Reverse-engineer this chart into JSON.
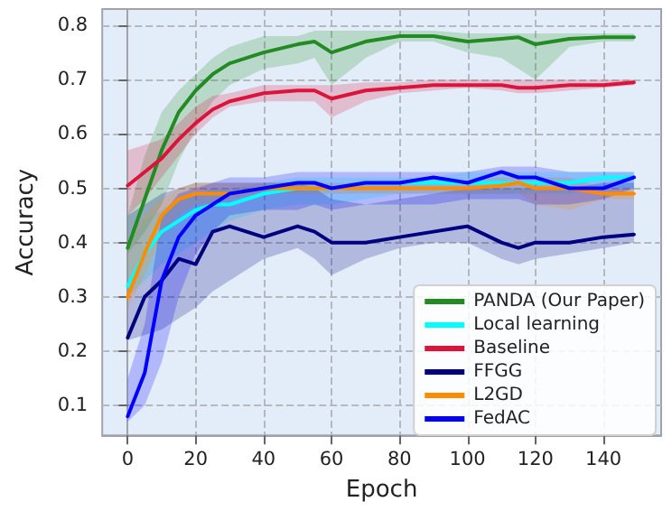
{
  "chart_data": {
    "type": "line",
    "xlabel": "Epoch",
    "ylabel": "Accuracy",
    "x": [
      0,
      5,
      10,
      15,
      20,
      25,
      30,
      40,
      50,
      55,
      60,
      70,
      80,
      90,
      100,
      110,
      115,
      120,
      130,
      140,
      149
    ],
    "xlim": [
      -7.5,
      157
    ],
    "xticks": [
      0,
      20,
      40,
      60,
      80,
      100,
      120,
      140
    ],
    "ylim": [
      0.045,
      0.83
    ],
    "yticks": [
      0.1,
      0.2,
      0.3,
      0.4,
      0.5,
      0.6,
      0.7,
      0.8
    ],
    "grid": true,
    "legend": "bottom right",
    "marker": "none",
    "line_style": "solid",
    "series": [
      {
        "name": "PANDA (Our Paper)",
        "color": "#228b22",
        "values": [
          0.39,
          0.48,
          0.57,
          0.64,
          0.68,
          0.71,
          0.73,
          0.75,
          0.765,
          0.77,
          0.75,
          0.77,
          0.78,
          0.78,
          0.77,
          0.775,
          0.778,
          0.765,
          0.775,
          0.778,
          0.778
        ],
        "lower": [
          0.38,
          0.42,
          0.47,
          0.55,
          0.61,
          0.66,
          0.69,
          0.72,
          0.73,
          0.74,
          0.69,
          0.74,
          0.77,
          0.77,
          0.75,
          0.74,
          0.72,
          0.7,
          0.76,
          0.77,
          0.77
        ],
        "upper": [
          0.45,
          0.56,
          0.64,
          0.68,
          0.71,
          0.74,
          0.76,
          0.78,
          0.78,
          0.79,
          0.79,
          0.79,
          0.79,
          0.79,
          0.785,
          0.785,
          0.785,
          0.785,
          0.785,
          0.785,
          0.785
        ]
      },
      {
        "name": "Local learning",
        "color": "#00ffff",
        "values": [
          0.32,
          0.38,
          0.42,
          0.44,
          0.46,
          0.47,
          0.47,
          0.49,
          0.5,
          0.5,
          0.5,
          0.51,
          0.51,
          0.51,
          0.51,
          0.51,
          0.51,
          0.51,
          0.51,
          0.52,
          0.52
        ],
        "lower": [
          0.3,
          0.33,
          0.36,
          0.38,
          0.4,
          0.42,
          0.44,
          0.46,
          0.47,
          0.47,
          0.47,
          0.48,
          0.49,
          0.49,
          0.49,
          0.49,
          0.49,
          0.49,
          0.49,
          0.5,
          0.5
        ],
        "upper": [
          0.4,
          0.44,
          0.46,
          0.48,
          0.49,
          0.5,
          0.5,
          0.51,
          0.52,
          0.52,
          0.52,
          0.52,
          0.52,
          0.52,
          0.53,
          0.53,
          0.53,
          0.53,
          0.53,
          0.53,
          0.53
        ]
      },
      {
        "name": "Baseline",
        "color": "#dc143c",
        "values": [
          0.505,
          0.53,
          0.555,
          0.59,
          0.62,
          0.645,
          0.66,
          0.675,
          0.68,
          0.68,
          0.665,
          0.68,
          0.685,
          0.69,
          0.69,
          0.69,
          0.685,
          0.685,
          0.69,
          0.69,
          0.695
        ],
        "lower": [
          0.45,
          0.48,
          0.52,
          0.56,
          0.6,
          0.63,
          0.65,
          0.66,
          0.66,
          0.66,
          0.63,
          0.66,
          0.675,
          0.68,
          0.685,
          0.68,
          0.675,
          0.675,
          0.68,
          0.685,
          0.69
        ],
        "upper": [
          0.57,
          0.58,
          0.59,
          0.62,
          0.65,
          0.67,
          0.675,
          0.69,
          0.69,
          0.69,
          0.69,
          0.695,
          0.695,
          0.7,
          0.7,
          0.7,
          0.7,
          0.7,
          0.7,
          0.7,
          0.7
        ]
      },
      {
        "name": "FFGG",
        "color": "#000080",
        "values": [
          0.225,
          0.3,
          0.33,
          0.37,
          0.36,
          0.42,
          0.43,
          0.41,
          0.43,
          0.42,
          0.4,
          0.4,
          0.41,
          0.42,
          0.43,
          0.4,
          0.39,
          0.4,
          0.4,
          0.41,
          0.415
        ],
        "lower": [
          0.22,
          0.23,
          0.24,
          0.26,
          0.28,
          0.31,
          0.33,
          0.37,
          0.39,
          0.37,
          0.34,
          0.37,
          0.39,
          0.4,
          0.4,
          0.37,
          0.36,
          0.37,
          0.38,
          0.39,
          0.4
        ],
        "upper": [
          0.45,
          0.47,
          0.49,
          0.5,
          0.51,
          0.51,
          0.51,
          0.51,
          0.51,
          0.5,
          0.48,
          0.47,
          0.48,
          0.49,
          0.5,
          0.5,
          0.5,
          0.5,
          0.5,
          0.51,
          0.51
        ]
      },
      {
        "name": "L2GD",
        "color": "#ff8c00",
        "values": [
          0.3,
          0.38,
          0.45,
          0.48,
          0.49,
          0.49,
          0.49,
          0.5,
          0.5,
          0.5,
          0.5,
          0.5,
          0.5,
          0.5,
          0.5,
          0.505,
          0.51,
          0.5,
          0.5,
          0.49,
          0.49
        ],
        "lower": [
          0.28,
          0.34,
          0.41,
          0.45,
          0.47,
          0.47,
          0.48,
          0.49,
          0.49,
          0.49,
          0.49,
          0.49,
          0.49,
          0.49,
          0.49,
          0.49,
          0.49,
          0.47,
          0.46,
          0.48,
          0.48
        ],
        "upper": [
          0.4,
          0.45,
          0.48,
          0.5,
          0.51,
          0.51,
          0.51,
          0.51,
          0.51,
          0.51,
          0.51,
          0.51,
          0.51,
          0.51,
          0.515,
          0.52,
          0.52,
          0.52,
          0.52,
          0.5,
          0.5
        ]
      },
      {
        "name": "FedAC",
        "color": "#0000ff",
        "values": [
          0.08,
          0.16,
          0.33,
          0.41,
          0.45,
          0.47,
          0.49,
          0.5,
          0.51,
          0.51,
          0.5,
          0.51,
          0.51,
          0.52,
          0.51,
          0.53,
          0.52,
          0.52,
          0.5,
          0.5,
          0.52
        ],
        "lower": [
          0.07,
          0.1,
          0.18,
          0.3,
          0.38,
          0.42,
          0.45,
          0.46,
          0.46,
          0.47,
          0.46,
          0.47,
          0.47,
          0.47,
          0.48,
          0.48,
          0.48,
          0.47,
          0.47,
          0.48,
          0.5
        ],
        "upper": [
          0.15,
          0.25,
          0.45,
          0.49,
          0.5,
          0.51,
          0.52,
          0.52,
          0.53,
          0.53,
          0.53,
          0.53,
          0.53,
          0.53,
          0.53,
          0.54,
          0.54,
          0.54,
          0.53,
          0.53,
          0.53
        ]
      }
    ]
  }
}
